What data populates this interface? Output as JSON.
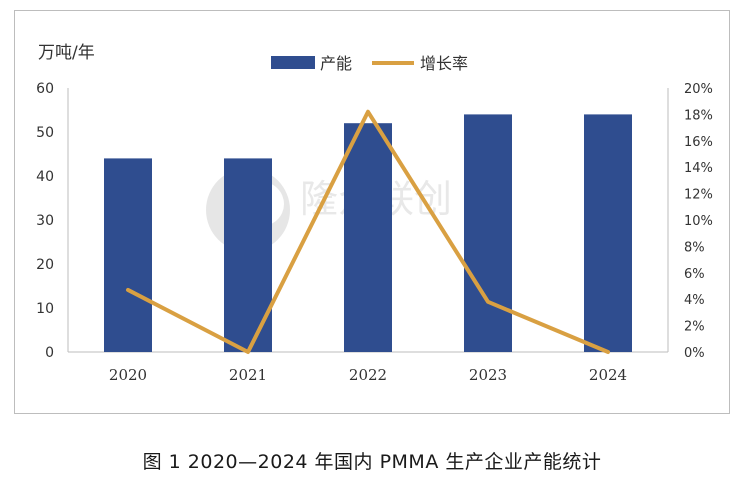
{
  "chart_data": {
    "type": "bar+line",
    "categories": [
      "2020",
      "2021",
      "2022",
      "2023",
      "2024"
    ],
    "series": [
      {
        "name": "产能",
        "kind": "bar",
        "axis": "left",
        "color": "#2f4d8f",
        "values": [
          44,
          44,
          52,
          54,
          54
        ]
      },
      {
        "name": "增长率",
        "kind": "line",
        "axis": "right",
        "color": "#d9a042",
        "values": [
          4.7,
          0,
          18.2,
          3.8,
          0
        ]
      }
    ],
    "ylabel_left": "万吨/年",
    "ylim_left": [
      0,
      60
    ],
    "yticks_left": [
      "0",
      "10",
      "20",
      "30",
      "40",
      "50",
      "60"
    ],
    "ylim_right": [
      0,
      20
    ],
    "yticks_right": [
      "0%",
      "2%",
      "4%",
      "6%",
      "8%",
      "10%",
      "12%",
      "14%",
      "16%",
      "18%",
      "20%"
    ],
    "legend_position": "top-center"
  },
  "caption": "图 1  2020—2024 年国内 PMMA 生产企业产能统计",
  "watermark_text": "隆众联创 ® www.315i.com"
}
